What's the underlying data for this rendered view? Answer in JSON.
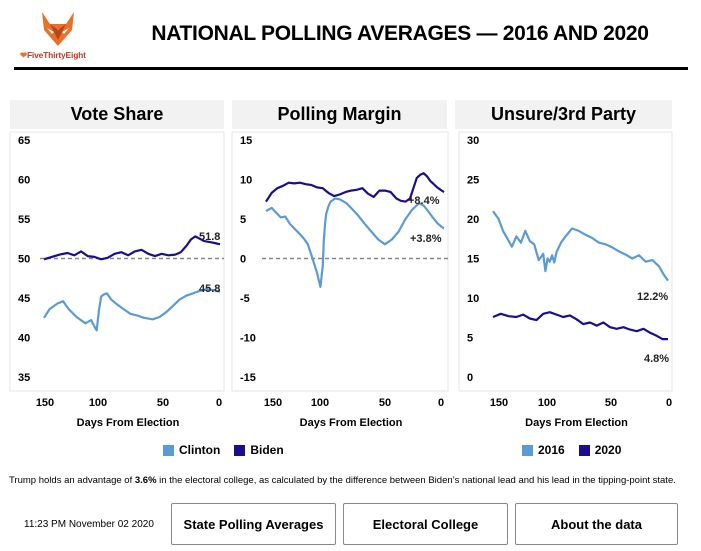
{
  "header": {
    "logo_text": "FiveThirtyEight",
    "title": "NATIONAL POLLING AVERAGES — 2016 AND 2020"
  },
  "colors": {
    "series_light": "#5b9bd5",
    "series_dark": "#1a0e8f",
    "reference_line": "#888888",
    "logo": "#e8702a"
  },
  "chart_data": [
    {
      "type": "line",
      "title": "Vote Share",
      "xlabel": "Days From Election",
      "ylabel": "",
      "xlim": [
        157,
        0
      ],
      "ylim": [
        35,
        65
      ],
      "xticks": [
        "150",
        "100",
        "50",
        "0"
      ],
      "yticks": [
        "65",
        "60",
        "55",
        "50",
        "45",
        "40",
        "35"
      ],
      "reference_line": 50,
      "series": [
        {
          "name": "Clinton",
          "x": [
            157,
            152,
            145,
            140,
            135,
            128,
            120,
            115,
            112,
            110,
            108,
            106,
            104,
            101,
            100,
            97,
            92,
            86,
            80,
            74,
            68,
            60,
            54,
            48,
            42,
            36,
            30,
            24,
            18,
            12,
            6,
            0
          ],
          "y": [
            42.5,
            43.6,
            44.3,
            44.6,
            43.6,
            42.6,
            41.8,
            42.2,
            41.4,
            40.9,
            43.4,
            45.2,
            45.4,
            45.6,
            45.4,
            44.8,
            44.2,
            43.6,
            43.0,
            42.8,
            42.5,
            42.3,
            42.6,
            43.2,
            44.0,
            44.8,
            45.3,
            45.6,
            45.9,
            46.1,
            46.0,
            45.8
          ]
        },
        {
          "name": "Biden",
          "x": [
            157,
            150,
            143,
            136,
            130,
            124,
            118,
            112,
            106,
            100,
            94,
            88,
            82,
            76,
            70,
            64,
            58,
            52,
            46,
            40,
            35,
            30,
            26,
            22,
            18,
            14,
            10,
            6,
            3,
            0
          ],
          "y": [
            49.9,
            50.2,
            50.5,
            50.7,
            50.4,
            50.9,
            50.3,
            50.2,
            49.9,
            50.1,
            50.6,
            50.8,
            50.4,
            50.9,
            51.1,
            50.6,
            50.3,
            50.6,
            50.4,
            50.5,
            50.8,
            51.6,
            52.4,
            52.8,
            52.5,
            52.2,
            52.1,
            52.0,
            51.9,
            51.8
          ]
        }
      ],
      "end_labels": [
        "51.8",
        "45.8"
      ]
    },
    {
      "type": "line",
      "title": "Polling Margin",
      "xlabel": "Days From Election",
      "ylabel": "",
      "xlim": [
        157,
        0
      ],
      "ylim": [
        -15,
        15
      ],
      "xticks": [
        "150",
        "100",
        "50",
        "0"
      ],
      "yticks": [
        "15",
        "10",
        "5",
        "0",
        "-5",
        "-10",
        "-15"
      ],
      "reference_line": 0,
      "series": [
        {
          "name": "Clinton",
          "x": [
            157,
            152,
            148,
            144,
            140,
            136,
            132,
            128,
            124,
            120,
            116,
            112,
            109,
            107,
            106,
            105,
            104,
            102,
            100,
            96,
            92,
            86,
            82,
            76,
            70,
            64,
            58,
            52,
            46,
            40,
            34,
            28,
            22,
            18,
            14,
            10,
            6,
            2,
            0
          ],
          "y": [
            6.0,
            6.4,
            5.8,
            5.2,
            5.3,
            4.4,
            3.8,
            3.2,
            2.6,
            1.8,
            0.0,
            -1.8,
            -3.6,
            -1.0,
            2.2,
            4.3,
            5.6,
            6.6,
            7.2,
            7.6,
            7.5,
            7.0,
            6.4,
            5.5,
            4.4,
            3.4,
            2.4,
            1.8,
            2.4,
            3.4,
            5.0,
            6.2,
            7.0,
            6.7,
            6.0,
            5.2,
            4.5,
            4.0,
            3.8
          ]
        },
        {
          "name": "Biden",
          "x": [
            157,
            152,
            147,
            142,
            137,
            132,
            127,
            122,
            117,
            112,
            107,
            102,
            97,
            92,
            87,
            82,
            77,
            72,
            67,
            62,
            57,
            52,
            47,
            42,
            38,
            34,
            30,
            27,
            24,
            21,
            18,
            15,
            12,
            9,
            6,
            3,
            0
          ],
          "y": [
            7.2,
            8.3,
            8.9,
            9.2,
            9.6,
            9.5,
            9.6,
            9.4,
            9.3,
            9.0,
            8.9,
            8.3,
            7.9,
            8.1,
            8.4,
            8.6,
            8.7,
            8.9,
            8.2,
            7.8,
            8.6,
            8.6,
            8.4,
            7.6,
            7.3,
            7.2,
            7.6,
            8.9,
            10.2,
            10.6,
            10.8,
            10.4,
            9.8,
            9.4,
            9.0,
            8.7,
            8.4
          ]
        }
      ],
      "end_labels": [
        "+8.4%",
        "+3.8%"
      ]
    },
    {
      "type": "line",
      "title": "Unsure/3rd Party",
      "xlabel": "Days From Election",
      "ylabel": "",
      "xlim": [
        157,
        0
      ],
      "ylim": [
        0,
        30
      ],
      "xticks": [
        "150",
        "100",
        "50",
        "0"
      ],
      "yticks": [
        "30",
        "25",
        "20",
        "15",
        "10",
        "5",
        "0"
      ],
      "series": [
        {
          "name": "2016",
          "x": [
            157,
            152,
            148,
            144,
            140,
            136,
            132,
            128,
            124,
            120,
            116,
            112,
            110,
            108,
            106,
            104,
            102,
            100,
            96,
            92,
            86,
            80,
            74,
            68,
            62,
            56,
            50,
            44,
            38,
            32,
            26,
            20,
            14,
            8,
            4,
            0
          ],
          "y": [
            21.0,
            20.0,
            18.5,
            17.5,
            16.5,
            17.8,
            17.0,
            18.5,
            17.2,
            16.8,
            14.8,
            15.6,
            13.4,
            15.0,
            14.6,
            15.4,
            14.5,
            15.8,
            17.0,
            17.8,
            18.8,
            18.5,
            18.0,
            17.6,
            17.0,
            16.8,
            16.4,
            15.9,
            15.5,
            15.0,
            15.4,
            14.6,
            14.8,
            14.0,
            13.0,
            12.2
          ]
        },
        {
          "name": "2020",
          "x": [
            157,
            150,
            143,
            136,
            130,
            124,
            118,
            112,
            106,
            100,
            94,
            88,
            82,
            76,
            70,
            64,
            58,
            52,
            46,
            40,
            34,
            28,
            22,
            16,
            10,
            5,
            0
          ],
          "y": [
            7.6,
            8.0,
            7.7,
            7.6,
            7.9,
            7.4,
            7.2,
            8.0,
            8.2,
            7.9,
            7.6,
            7.8,
            7.3,
            6.7,
            6.9,
            6.5,
            6.9,
            6.3,
            6.1,
            6.3,
            6.0,
            5.8,
            6.1,
            5.6,
            5.2,
            4.8,
            4.8
          ]
        }
      ],
      "end_labels": [
        "12.2%",
        "4.8%"
      ]
    }
  ],
  "legends": {
    "vote_share": [
      "Clinton",
      "Biden"
    ],
    "unsure": [
      "2016",
      "2020"
    ]
  },
  "note": {
    "prefix": "Trump holds an advantage of ",
    "value": "3.6%",
    "suffix": " in the electoral college, as calculated by the difference between Biden’s national lead and his lead in the tipping-point state."
  },
  "timestamp": "11:23 PM November 02 2020",
  "buttons": {
    "state_polling": "State Polling Averages",
    "electoral_college": "Electoral College",
    "about": "About the data"
  }
}
